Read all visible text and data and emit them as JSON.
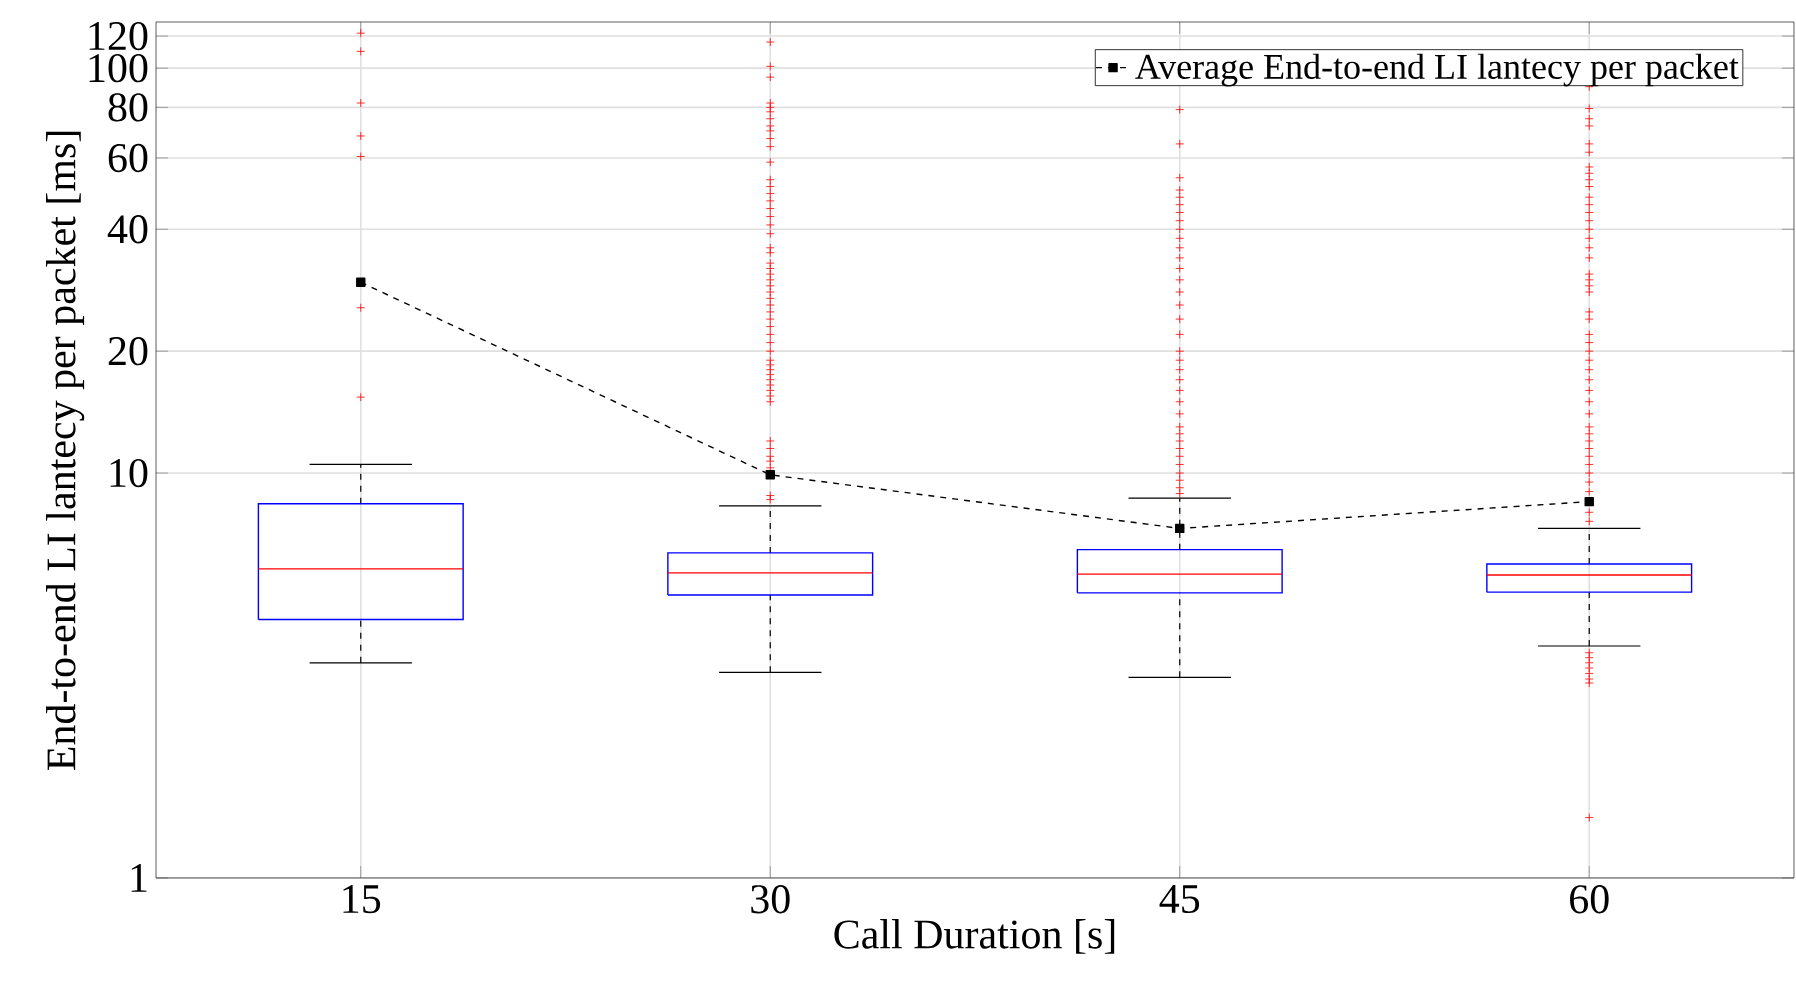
{
  "chart_data": {
    "type": "box",
    "xlabel": "Call Duration [s]",
    "ylabel": "End-to-end LI lantecy per packet [ms]",
    "categories": [
      "15",
      "30",
      "45",
      "60"
    ],
    "ylim": [
      1,
      130
    ],
    "yticks": [
      1,
      10,
      20,
      40,
      60,
      80,
      100,
      120
    ],
    "log": "y",
    "grid": true,
    "legend": "top right",
    "series": [
      {
        "color": "#0000ff",
        "boxes": [
          {
            "low": 3.4,
            "q1": 4.35,
            "median": 5.8,
            "q3": 8.4,
            "high": 10.5,
            "outliers": [
              122,
              110,
              82,
              68,
              60.5,
              25.6,
              15.4
            ]
          },
          {
            "low": 3.22,
            "q1": 5.0,
            "median": 5.67,
            "q3": 6.35,
            "high": 8.3,
            "outliers": [
              116,
              101,
              95,
              82,
              80,
              78,
              75,
              72,
              70,
              67,
              64,
              58.6,
              53,
              51,
              49,
              47,
              45,
              43,
              41,
              39,
              36,
              35,
              33,
              32,
              31,
              30,
              29,
              28,
              27,
              26,
              25,
              24,
              23,
              22,
              21,
              20,
              19,
              18.5,
              18,
              17.5,
              17,
              16.5,
              16,
              15.5,
              15,
              12,
              11.5,
              11,
              10.7,
              10.3,
              8.8,
              8.6
            ]
          },
          {
            "low": 3.13,
            "q1": 5.06,
            "median": 5.63,
            "q3": 6.47,
            "high": 8.67,
            "outliers": [
              79,
              65,
              53.6,
              50,
              48,
              46,
              44,
              42,
              40,
              38,
              36,
              34,
              32,
              30,
              28,
              26,
              24,
              22,
              20,
              19,
              18,
              17,
              16,
              15,
              14,
              13,
              12.5,
              12,
              11.5,
              11,
              10.5,
              10,
              9.6,
              9.2,
              8.9
            ]
          },
          {
            "low": 3.74,
            "q1": 5.08,
            "median": 5.6,
            "q3": 5.96,
            "high": 7.3,
            "outliers": [
              90,
              79.5,
              75,
              72,
              65,
              62,
              57,
              55,
              53,
              51,
              48,
              46,
              44,
              42,
              40,
              38,
              36,
              34,
              31,
              30,
              29,
              28,
              25,
              24,
              22,
              21,
              20,
              19,
              18,
              17,
              16,
              15,
              14,
              13,
              12.5,
              12,
              11.5,
              11,
              10.5,
              10,
              9.5,
              9,
              8.5,
              8,
              7.6,
              3.6,
              3.5,
              3.4,
              3.3,
              3.2,
              3.1,
              3.03,
              1.41
            ]
          }
        ]
      },
      {
        "type": "line",
        "name": "Average End-to-end LI lantecy per packet",
        "color": "#000000",
        "marker": "square",
        "line_style": "dashed",
        "values": [
          29.6,
          9.9,
          7.3,
          8.5
        ]
      }
    ]
  }
}
